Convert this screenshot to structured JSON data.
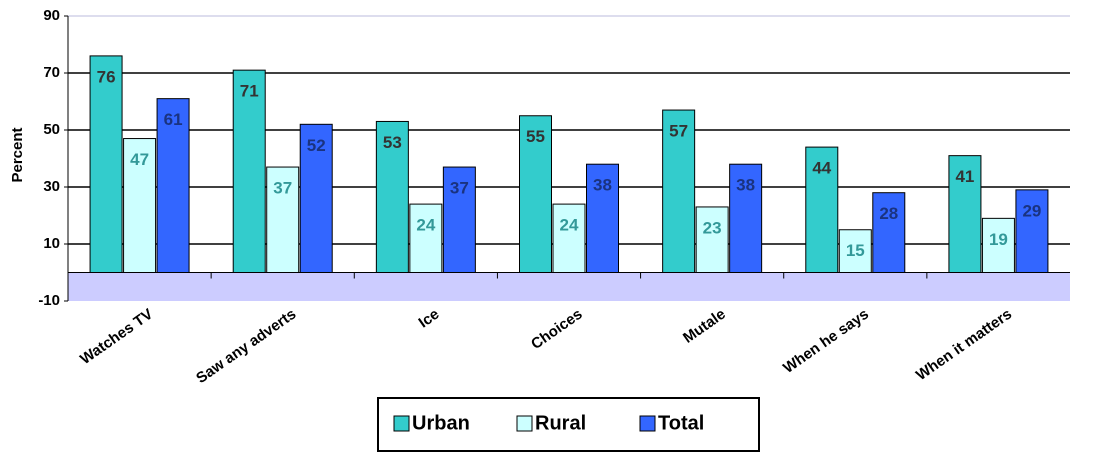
{
  "chart_data": {
    "type": "bar",
    "y_label": "Percent",
    "categories": [
      "Watches TV",
      "Saw any adverts",
      "Ice",
      "Choices",
      "Mutale",
      "When he says",
      "When it matters"
    ],
    "series": [
      {
        "name": "Urban",
        "color": "#33cccc",
        "label_color": "#333333",
        "values": [
          76,
          71,
          53,
          55,
          57,
          44,
          41
        ]
      },
      {
        "name": "Rural",
        "color": "#ccffff",
        "label_color": "#339999",
        "values": [
          47,
          37,
          24,
          24,
          23,
          15,
          19
        ]
      },
      {
        "name": "Total",
        "color": "#3366ff",
        "label_color": "#1a3380",
        "values": [
          61,
          52,
          37,
          38,
          38,
          28,
          29
        ]
      }
    ],
    "ylim": [
      -10,
      90
    ],
    "yticks": [
      -10,
      10,
      30,
      50,
      70,
      90
    ],
    "grid": true,
    "legend": "bottom"
  }
}
